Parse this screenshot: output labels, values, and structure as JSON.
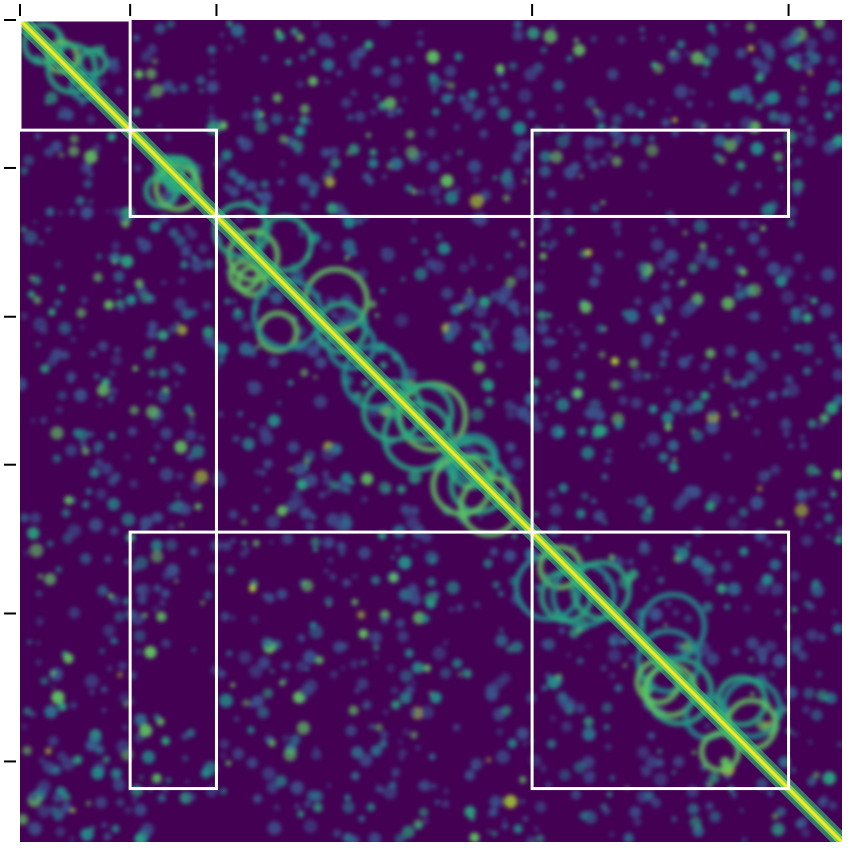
{
  "chart_data": {
    "type": "heatmap",
    "title": "",
    "xlabel": "",
    "ylabel": "",
    "colormap": "viridis",
    "background_color": "#440154",
    "box_color": "#ffffff",
    "tick_color": "#000000",
    "n": 1000,
    "x_ticks": [
      0,
      134,
      239,
      623,
      935
    ],
    "y_ticks": [
      0,
      180,
      361,
      541,
      722,
      902
    ],
    "tick_labels_visible": false,
    "diagonal": "strong",
    "boxes": [
      {
        "name": "block-1",
        "x0": 0,
        "x1": 134,
        "y0": 0,
        "y1": 134
      },
      {
        "name": "block-2",
        "x0": 134,
        "x1": 239,
        "y0": 134,
        "y1": 239
      },
      {
        "name": "block-3",
        "x0": 623,
        "x1": 935,
        "y0": 134,
        "y1": 239
      },
      {
        "name": "block-4",
        "x0": 239,
        "x1": 623,
        "y0": 239,
        "y1": 623
      },
      {
        "name": "block-5",
        "x0": 134,
        "x1": 239,
        "y0": 623,
        "y1": 935
      },
      {
        "name": "block-6",
        "x0": 623,
        "x1": 935,
        "y0": 623,
        "y1": 935
      }
    ]
  }
}
